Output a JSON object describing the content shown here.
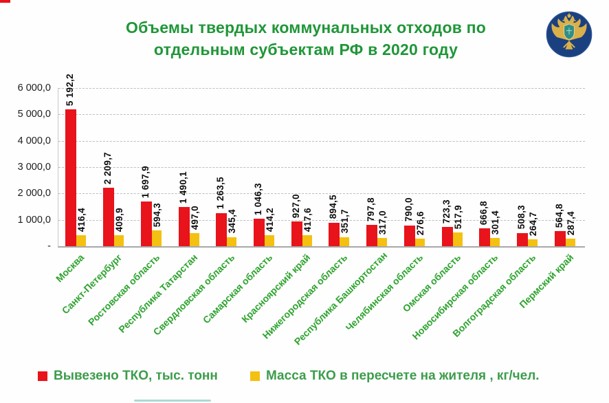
{
  "title": {
    "line1": "Объемы твердых коммунальных отходов по",
    "line2": "отдельным субъектам РФ в 2020 году"
  },
  "logo": {
    "name": "rosprirodnadzor-emblem"
  },
  "chart_data": {
    "type": "bar",
    "title": "Объемы твердых коммунальных отходов по отдельным субъектам РФ в 2020 году",
    "categories": [
      "Москва",
      "Санкт-Петербург",
      "Ростовская область",
      "Республика Татарстан",
      "Свердловская область",
      "Самарская область",
      "Красноярский край",
      "Нижегородская область",
      "Республика Башкортостан",
      "Челябинская область",
      "Омская область",
      "Новосибирская область",
      "Волгоградская область",
      "Пермский край"
    ],
    "series": [
      {
        "name": "Вывезено ТКО, тыс. тонн",
        "color": "#e8131b",
        "values": [
          5192.2,
          2209.7,
          1697.9,
          1490.1,
          1263.5,
          1046.3,
          927.0,
          894.5,
          797.8,
          790.0,
          723.3,
          666.8,
          508.3,
          564.8
        ],
        "labels": [
          "5 192,2",
          "2 209,7",
          "1 697,9",
          "1 490,1",
          "1 263,5",
          "1 046,3",
          "927,0",
          "894,5",
          "797,8",
          "790,0",
          "723,3",
          "666,8",
          "508,3",
          "564,8"
        ]
      },
      {
        "name": "Масса ТКО в пересчете на жителя , кг/чел.",
        "color": "#f4c012",
        "values": [
          416.4,
          409.9,
          594.3,
          497.0,
          345.4,
          414.2,
          417.6,
          351.7,
          317.0,
          276.6,
          517.9,
          301.4,
          264.7,
          287.4
        ],
        "labels": [
          "416,4",
          "409,9",
          "594,3",
          "497,0",
          "345,4",
          "414,2",
          "417,6",
          "351,7",
          "317,0",
          "276,6",
          "517,9",
          "301,4",
          "264,7",
          "287,4"
        ]
      }
    ],
    "y_axis": {
      "min": 0,
      "max": 6000,
      "tick_step": 1000,
      "tick_values": [
        0,
        1000,
        2000,
        3000,
        4000,
        5000,
        6000
      ],
      "tick_labels": [
        "-",
        "1 000,0",
        "2 000,0",
        "3 000,0",
        "4 000,0",
        "5 000,0",
        "6 000,0"
      ]
    },
    "grid": "horizontal-dashed",
    "legend_position": "bottom",
    "xlabel": "",
    "ylabel": ""
  },
  "legend": {
    "items": [
      {
        "label": "Вывезено ТКО, тыс. тонн",
        "color": "#e8131b"
      },
      {
        "label": "Масса ТКО в пересчете на жителя , кг/чел.",
        "color": "#f4c012"
      }
    ]
  },
  "colors": {
    "title_green": "#1f9638",
    "axis_label_green": "#2da32e",
    "legend_green": "#3c9d4b",
    "bar_red": "#e8131b",
    "bar_yellow": "#f4c012",
    "emblem_navy": "#1b4080",
    "emblem_gold": "#d9b04a"
  }
}
